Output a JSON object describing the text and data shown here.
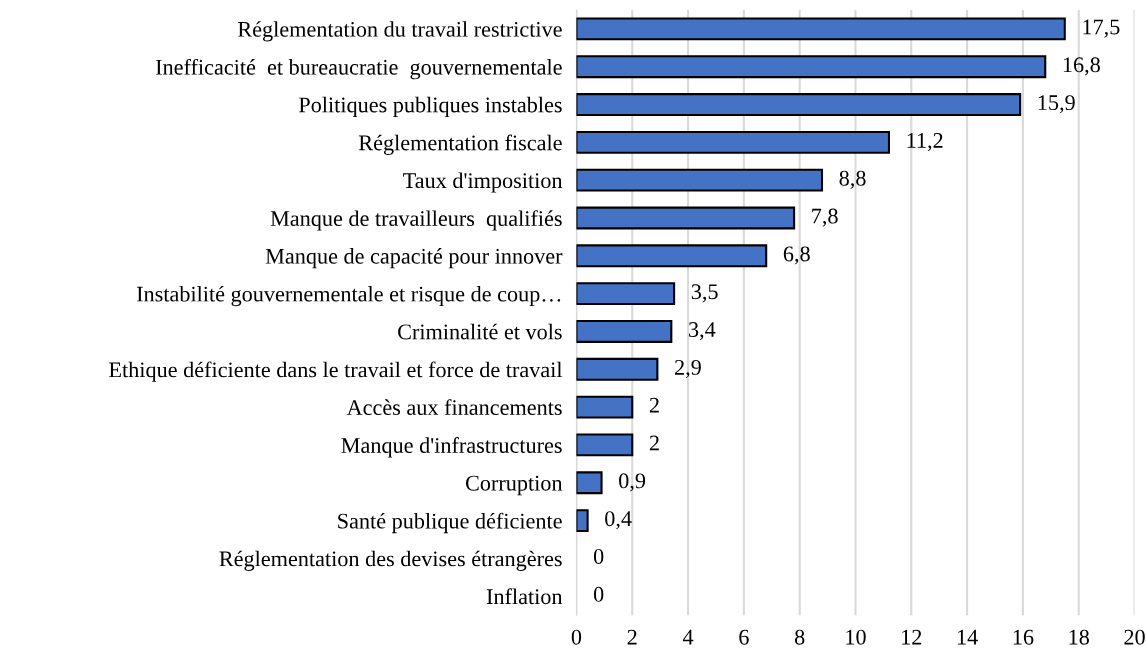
{
  "chart_data": {
    "type": "bar",
    "orientation": "horizontal",
    "categories": [
      "Réglementation du travail restrictive",
      "Inefficacité  et bureaucratie  gouvernementale",
      "Politiques publiques instables",
      "Réglementation fiscale",
      "Taux d'imposition",
      "Manque de travailleurs  qualifiés",
      "Manque de capacité pour innover",
      "Instabilité gouvernementale et risque de coup…",
      "Criminalité et vols",
      "Ethique déficiente dans le travail et force de travail",
      "Accès aux financements",
      "Manque d'infrastructures",
      "Corruption",
      "Santé publique déficiente",
      "Réglementation des devises étrangères",
      "Inflation"
    ],
    "values": [
      17.5,
      16.8,
      15.9,
      11.2,
      8.8,
      7.8,
      6.8,
      3.5,
      3.4,
      2.9,
      2,
      2,
      0.9,
      0.4,
      0,
      0
    ],
    "value_labels": [
      "17,5",
      "16,8",
      "15,9",
      "11,2",
      "8,8",
      "7,8",
      "6,8",
      "3,5",
      "3,4",
      "2,9",
      "2",
      "2",
      "0,9",
      "0,4",
      "0",
      "0"
    ],
    "color": "#4472c4",
    "xlim": [
      0,
      20
    ],
    "xticks": [
      0,
      2,
      4,
      6,
      8,
      10,
      12,
      14,
      16,
      18,
      20
    ],
    "grid": "x",
    "legend": false
  }
}
